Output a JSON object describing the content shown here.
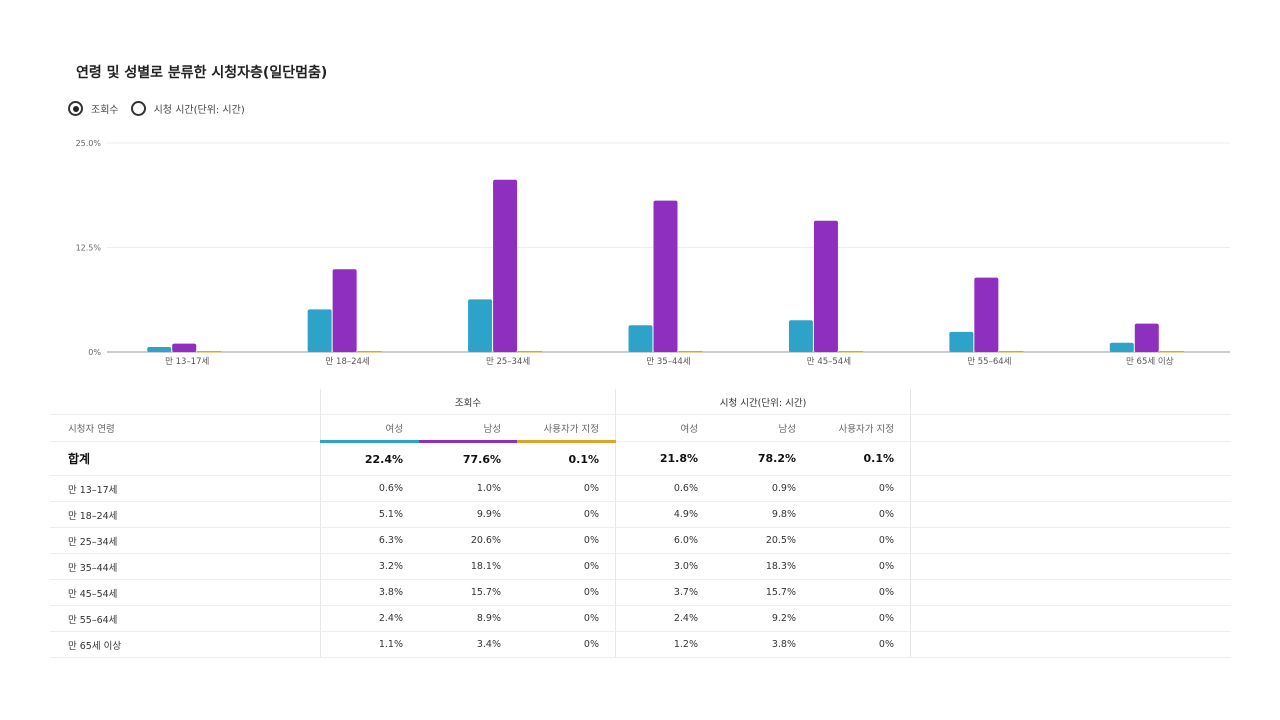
{
  "title": "연령 및 성별로 분류한 시청자층(일단멈춤)",
  "radio_options": [
    {
      "label": "조회수",
      "selected": true
    },
    {
      "label": "시청 시간(단위: 시간)",
      "selected": false
    }
  ],
  "chart_data": {
    "type": "bar",
    "categories": [
      "만 13–17세",
      "만 18–24세",
      "만 25–34세",
      "만 35–44세",
      "만 45–54세",
      "만 55–64세",
      "만 65세 이상"
    ],
    "series": [
      {
        "name": "여성",
        "color": "#2ea3c9",
        "values": [
          0.6,
          5.1,
          6.3,
          3.2,
          3.8,
          2.4,
          1.1
        ]
      },
      {
        "name": "남성",
        "color": "#8e2fbf",
        "values": [
          1.0,
          9.9,
          20.6,
          18.1,
          15.7,
          8.9,
          3.4
        ]
      },
      {
        "name": "사용자가 지정",
        "color": "#e0a32a",
        "values": [
          0,
          0,
          0,
          0,
          0,
          0,
          0
        ]
      }
    ],
    "yticks": [
      "0%",
      "12.5%",
      "25.0%"
    ],
    "ylim": [
      0,
      25
    ]
  },
  "table": {
    "row_header": "시청자 연령",
    "groups": [
      "조회수",
      "시청 시간(단위: 시간)"
    ],
    "subheaders": [
      "여성",
      "남성",
      "사용자가 지정",
      "여성",
      "남성",
      "사용자가 지정"
    ],
    "total": {
      "label": "합계",
      "values": [
        "22.4%",
        "77.6%",
        "0.1%",
        "21.8%",
        "78.2%",
        "0.1%"
      ]
    },
    "rows": [
      {
        "label": "만 13–17세",
        "values": [
          "0.6%",
          "1.0%",
          "0%",
          "0.6%",
          "0.9%",
          "0%"
        ]
      },
      {
        "label": "만 18–24세",
        "values": [
          "5.1%",
          "9.9%",
          "0%",
          "4.9%",
          "9.8%",
          "0%"
        ]
      },
      {
        "label": "만 25–34세",
        "values": [
          "6.3%",
          "20.6%",
          "0%",
          "6.0%",
          "20.5%",
          "0%"
        ]
      },
      {
        "label": "만 35–44세",
        "values": [
          "3.2%",
          "18.1%",
          "0%",
          "3.0%",
          "18.3%",
          "0%"
        ]
      },
      {
        "label": "만 45–54세",
        "values": [
          "3.8%",
          "15.7%",
          "0%",
          "3.7%",
          "15.7%",
          "0%"
        ]
      },
      {
        "label": "만 55–64세",
        "values": [
          "2.4%",
          "8.9%",
          "0%",
          "2.4%",
          "9.2%",
          "0%"
        ]
      },
      {
        "label": "만 65세 이상",
        "values": [
          "1.1%",
          "3.4%",
          "0%",
          "1.2%",
          "3.8%",
          "0%"
        ]
      }
    ]
  }
}
